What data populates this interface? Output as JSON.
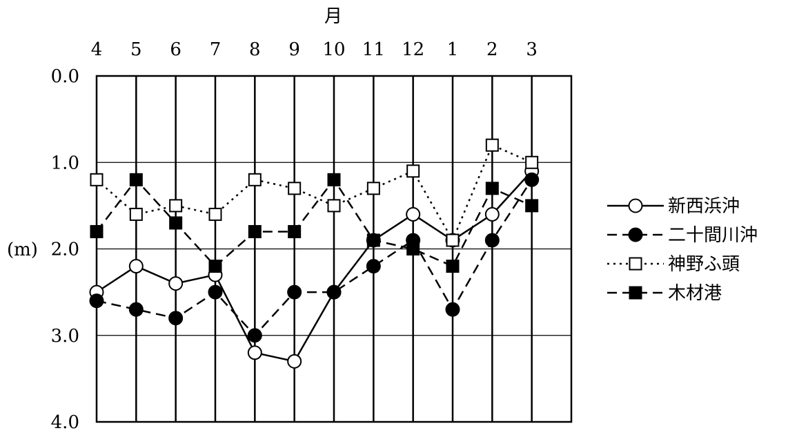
{
  "chart_data": {
    "type": "line",
    "xlabel": "月",
    "ylabel": "(m)",
    "categories": [
      "4",
      "5",
      "6",
      "7",
      "8",
      "9",
      "10",
      "11",
      "12",
      "1",
      "2",
      "3"
    ],
    "y_tick_labels": [
      "0.0",
      "1.0",
      "2.0",
      "3.0",
      "4.0"
    ],
    "ylim": [
      0,
      4
    ],
    "y_inverted": true,
    "x_axis_position": "top",
    "grid": true,
    "legend_position": "right",
    "series": [
      {
        "name": "新西浜沖",
        "marker": "circle-open",
        "line": "solid",
        "values": [
          2.5,
          2.2,
          2.4,
          2.3,
          3.2,
          3.3,
          2.5,
          1.9,
          1.6,
          1.9,
          1.6,
          1.1
        ]
      },
      {
        "name": "二十間川沖",
        "marker": "circle-filled",
        "line": "dashed",
        "values": [
          2.6,
          2.7,
          2.8,
          2.5,
          3.0,
          2.5,
          2.5,
          2.2,
          1.9,
          2.7,
          1.9,
          1.2
        ]
      },
      {
        "name": "神野ふ頭",
        "marker": "square-open",
        "line": "dotted",
        "values": [
          1.2,
          1.6,
          1.5,
          1.6,
          1.2,
          1.3,
          1.5,
          1.3,
          1.1,
          1.9,
          0.8,
          1.0
        ]
      },
      {
        "name": "木材港",
        "marker": "square-filled",
        "line": "dashed",
        "values": [
          1.8,
          1.2,
          1.7,
          2.2,
          1.8,
          1.8,
          1.2,
          1.9,
          2.0,
          2.2,
          1.3,
          1.5
        ]
      }
    ]
  }
}
